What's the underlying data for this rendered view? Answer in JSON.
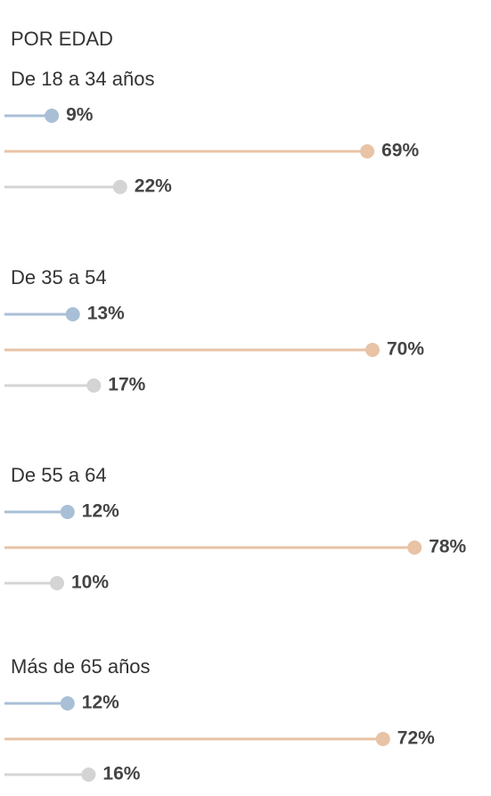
{
  "chart_data": {
    "type": "lollipop",
    "title": "POR EDAD",
    "categories": [
      "De 18 a 34 años",
      "De 35 a 54",
      "De 55 a 64",
      "Más de 65 años"
    ],
    "series": [
      {
        "color": "#a9bfd6",
        "values": [
          9,
          13,
          12,
          12
        ],
        "value_labels": [
          "9%",
          "13%",
          "12%",
          "12%"
        ]
      },
      {
        "color": "#e8c3a6",
        "values": [
          69,
          70,
          78,
          72
        ],
        "value_labels": [
          "69%",
          "70%",
          "78%",
          "72%"
        ]
      },
      {
        "color": "#d4d4d4",
        "values": [
          22,
          17,
          10,
          16
        ],
        "value_labels": [
          "22%",
          "17%",
          "10%",
          "16%"
        ]
      }
    ]
  }
}
